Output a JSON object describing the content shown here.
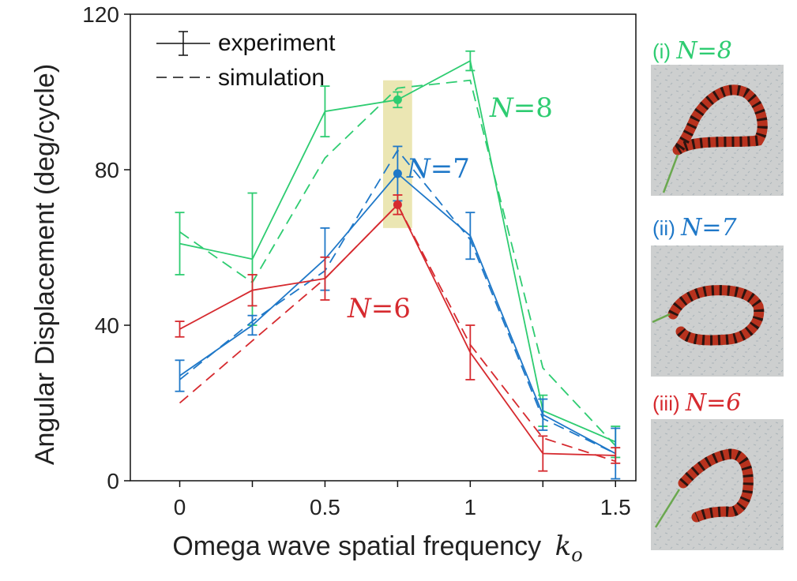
{
  "chart_data": {
    "type": "line",
    "xlabel": "Omega wave spatial frequency",
    "xlabel_var": "k",
    "xlabel_sub": "o",
    "ylabel": "Angular Displacement (deg/cycle)",
    "xlim": [
      -0.17,
      1.57
    ],
    "ylim": [
      0,
      120
    ],
    "x_ticks": [
      0,
      0.25,
      0.5,
      0.75,
      1,
      1.25,
      1.5
    ],
    "x_tick_labels": [
      "0",
      "",
      "0.5",
      "",
      "1",
      "",
      "1.5"
    ],
    "y_ticks": [
      0,
      40,
      80,
      120
    ],
    "y_tick_labels": [
      "0",
      "40",
      "80",
      "120"
    ],
    "legend": {
      "position": "top-left",
      "experiment_label": "experiment",
      "simulation_label": "simulation"
    },
    "highlight": {
      "x_range": [
        0.7,
        0.8
      ],
      "y_range": [
        65,
        103
      ],
      "color": "#e8e2a6"
    },
    "x": [
      0,
      0.25,
      0.5,
      0.75,
      1,
      1.25,
      1.5
    ],
    "series": [
      {
        "name": "N = 8",
        "label_var": "N",
        "label_eq": "=",
        "label_num": "8",
        "color": "#2ecc71",
        "experiment": [
          61,
          57,
          95,
          98,
          108,
          18,
          10
        ],
        "error": [
          8,
          17,
          6.5,
          2,
          2.5,
          4,
          4
        ],
        "simulation": [
          64,
          51,
          83,
          101,
          103,
          29,
          9
        ],
        "marker_x": 0.75
      },
      {
        "name": "N = 7",
        "label_var": "N",
        "label_eq": "=",
        "label_num": "7",
        "color": "#1f78c8",
        "experiment": [
          27,
          40,
          57,
          79,
          63,
          17,
          7
        ],
        "error": [
          4,
          2.5,
          8,
          7,
          6,
          4,
          6.5
        ],
        "simulation": [
          26,
          41,
          54,
          85,
          62,
          16,
          7
        ],
        "marker_x": 0.75
      },
      {
        "name": "N = 6",
        "label_var": "N",
        "label_eq": "=",
        "label_num": "6",
        "color": "#d62a2f",
        "experiment": [
          39,
          49,
          52,
          71,
          33,
          7,
          6.5
        ],
        "error": [
          2,
          4,
          5.5,
          2.5,
          7,
          4.5,
          2
        ],
        "simulation": [
          20,
          36,
          52,
          71,
          35,
          11,
          5
        ],
        "marker_x": 0.75
      }
    ]
  },
  "photos": [
    {
      "caption_prefix": "(i)",
      "label_var": "N",
      "label_eq": "=",
      "label_num": "8",
      "color": "#2ecc71"
    },
    {
      "caption_prefix": "(ii)",
      "label_var": "N",
      "label_eq": "=",
      "label_num": "7",
      "color": "#1f78c8"
    },
    {
      "caption_prefix": "(iii)",
      "label_var": "N",
      "label_eq": "=",
      "label_num": "6",
      "color": "#d62a2f"
    }
  ]
}
